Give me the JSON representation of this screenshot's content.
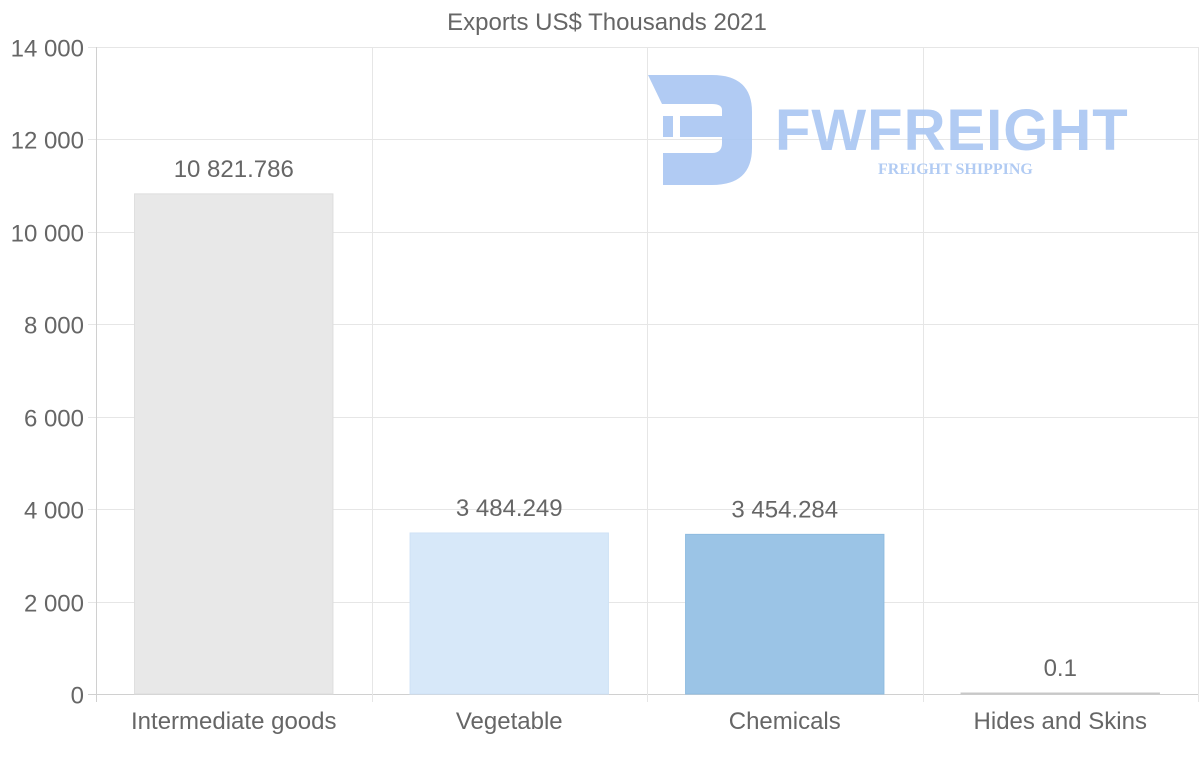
{
  "chart_data": {
    "type": "bar",
    "title": "Exports US$ Thousands 2021",
    "categories": [
      "Intermediate goods",
      "Vegetable",
      "Chemicals",
      "Hides and Skins"
    ],
    "values": [
      10821.786,
      3484.249,
      3454.284,
      0.1
    ],
    "value_labels": [
      "10 821.786",
      "3 484.249",
      "3 454.284",
      "0.1"
    ],
    "bar_colors": [
      "#e8e8e8",
      "#d7e8f9",
      "#9bc4e6",
      "#c8c8c8"
    ],
    "bar_border_colors": [
      "#dddddd",
      "#cfe2f6",
      "#8fbbe0",
      "#c8c8c8"
    ],
    "yticks": [
      0,
      2000,
      4000,
      6000,
      8000,
      10000,
      12000,
      14000
    ],
    "ytick_labels": [
      "0",
      "2 000",
      "4 000",
      "6 000",
      "8 000",
      "10 000",
      "12 000",
      "14 000"
    ],
    "ylim": [
      0,
      14000
    ],
    "xlabel": "",
    "ylabel": "",
    "grid": true,
    "legend": "none"
  },
  "watermark": {
    "brand": "FWFREIGHT",
    "tagline": "FREIGHT SHIPPING",
    "color": "#a9c6f2"
  }
}
